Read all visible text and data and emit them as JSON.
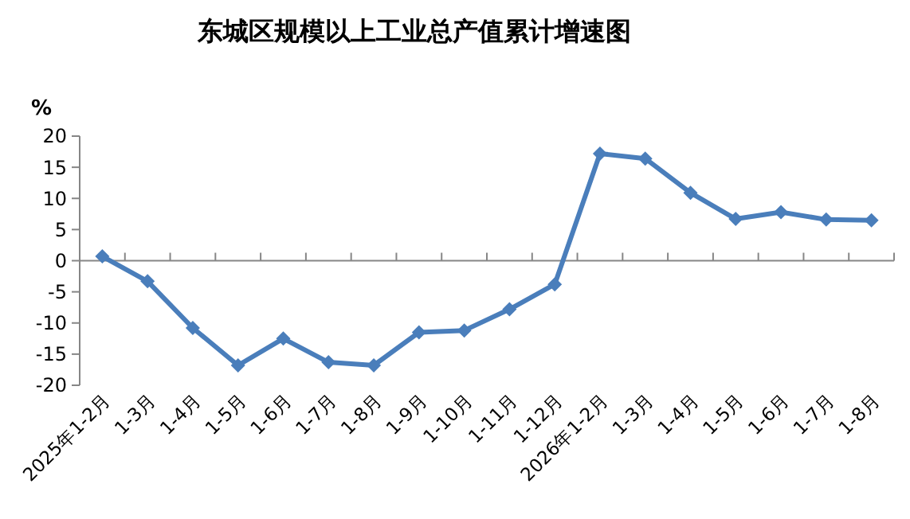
{
  "chart_data": {
    "type": "line",
    "title": "东城区规模以上工业总产值累计增速图",
    "ylabel": "%",
    "categories": [
      "2025年1-2月",
      "1-3月",
      "1-4月",
      "1-5月",
      "1-6月",
      "1-7月",
      "1-8月",
      "1-9月",
      "1-10月",
      "1-11月",
      "1-12月",
      "2026年1-2月",
      "1-3月",
      "1-4月",
      "1-5月",
      "1-6月",
      "1-7月",
      "1-8月"
    ],
    "series": [
      {
        "color": "#4a7ebb",
        "values": [
          0.7,
          -3.3,
          -10.8,
          -16.8,
          -12.5,
          -16.3,
          -16.8,
          -11.5,
          -11.2,
          -7.8,
          -3.8,
          17.2,
          16.4,
          10.9,
          6.7,
          7.8,
          6.6,
          6.5
        ]
      }
    ],
    "ylim": [
      -20,
      20
    ],
    "yticks": [
      -20,
      -15,
      -10,
      -5,
      0,
      5,
      10,
      15,
      20
    ],
    "marker": "diamond",
    "line_style": "solid"
  }
}
